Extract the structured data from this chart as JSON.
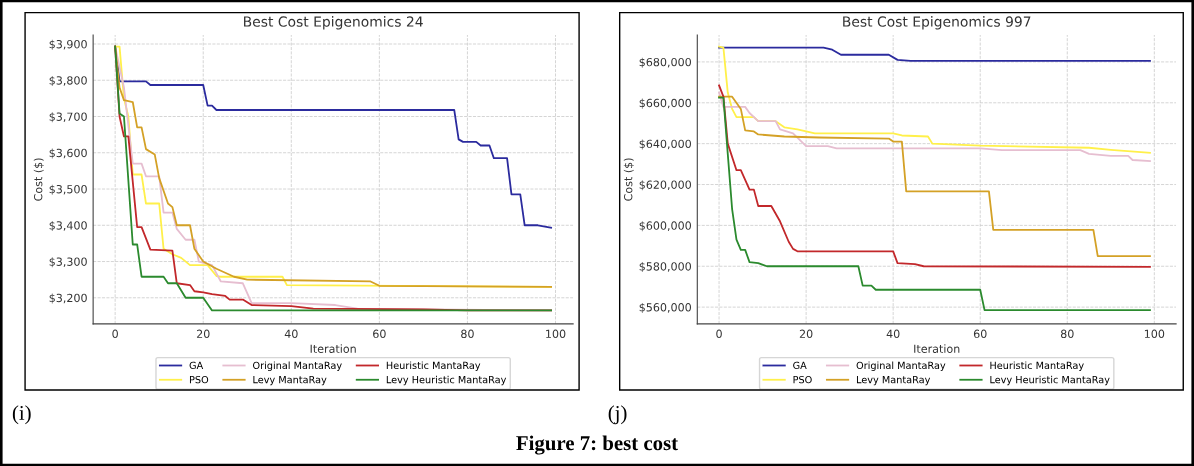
{
  "chart_data": [
    {
      "type": "line",
      "title": "Best Cost Epigenomics 24",
      "xlabel": "Iteration",
      "ylabel": "Cost ($)",
      "xlim": [
        -5,
        104
      ],
      "xticks": [
        0,
        20,
        40,
        60,
        80,
        100
      ],
      "ylim": [
        3128,
        3925
      ],
      "yticks": [
        {
          "value": 3200,
          "label": "$3,200"
        },
        {
          "value": 3300,
          "label": "$3,300"
        },
        {
          "value": 3400,
          "label": "$3,400"
        },
        {
          "value": 3500,
          "label": "$3,500"
        },
        {
          "value": 3600,
          "label": "$3,600"
        },
        {
          "value": 3700,
          "label": "$3,700"
        },
        {
          "value": 3800,
          "label": "$3,800"
        },
        {
          "value": 3900,
          "label": "$3,900"
        }
      ],
      "grid": true,
      "legend": "bottom",
      "annotations": [
        "(i)"
      ],
      "series": [
        {
          "name": "GA",
          "color": "#2b2b9e",
          "x": [
            0,
            1,
            7,
            8,
            20,
            21,
            22,
            23,
            77,
            78,
            79,
            82,
            83,
            85,
            86,
            89,
            90,
            92,
            93,
            96,
            99
          ],
          "values": [
            3893,
            3797,
            3797,
            3787,
            3787,
            3730,
            3730,
            3718,
            3718,
            3637,
            3630,
            3630,
            3620,
            3620,
            3585,
            3585,
            3485,
            3485,
            3400,
            3400,
            3393
          ]
        },
        {
          "name": "PSO",
          "color": "#fff04a",
          "x": [
            0,
            1,
            2,
            3,
            4,
            6,
            7,
            10,
            11,
            13,
            15,
            17,
            21,
            23,
            24,
            38,
            39,
            99
          ],
          "values": [
            3893,
            3893,
            3750,
            3700,
            3540,
            3540,
            3460,
            3460,
            3335,
            3320,
            3310,
            3290,
            3290,
            3260,
            3258,
            3258,
            3235,
            3230
          ]
        },
        {
          "name": "Original MantaRay",
          "color": "#e6bed0",
          "x": [
            0,
            2,
            4,
            6,
            7,
            10,
            11,
            13,
            14,
            16,
            18,
            19,
            22,
            24,
            29,
            31,
            40,
            50,
            55,
            99
          ],
          "values": [
            3893,
            3780,
            3570,
            3570,
            3535,
            3535,
            3435,
            3435,
            3390,
            3360,
            3360,
            3300,
            3290,
            3245,
            3240,
            3185,
            3185,
            3180,
            3170,
            3165
          ]
        },
        {
          "name": "Levy MantaRay",
          "color": "#d4a126",
          "x": [
            0,
            1,
            2,
            4,
            5,
            6,
            7,
            9,
            10,
            12,
            13,
            14,
            17,
            18,
            20,
            23,
            27,
            30,
            58,
            60,
            99
          ],
          "values": [
            3893,
            3780,
            3745,
            3740,
            3670,
            3670,
            3610,
            3595,
            3530,
            3460,
            3450,
            3400,
            3400,
            3335,
            3300,
            3280,
            3258,
            3250,
            3245,
            3233,
            3230
          ]
        },
        {
          "name": "Heuristic MantaRay",
          "color": "#c2282b",
          "x": [
            0,
            1,
            2,
            3,
            5,
            6,
            8,
            13,
            14,
            17,
            18,
            20,
            22,
            25,
            26,
            29,
            31,
            40,
            45,
            70,
            80,
            99
          ],
          "values": [
            3893,
            3700,
            3645,
            3645,
            3395,
            3395,
            3333,
            3330,
            3240,
            3235,
            3218,
            3215,
            3210,
            3205,
            3195,
            3195,
            3180,
            3177,
            3170,
            3168,
            3165,
            3165
          ]
        },
        {
          "name": "Levy Heuristic MantaRay",
          "color": "#2b8a2e",
          "x": [
            0,
            1,
            2,
            4,
            5,
            6,
            11,
            12,
            14,
            16,
            20,
            22,
            99
          ],
          "values": [
            3893,
            3708,
            3700,
            3347,
            3347,
            3258,
            3258,
            3240,
            3240,
            3200,
            3200,
            3165,
            3165
          ]
        }
      ]
    },
    {
      "type": "line",
      "title": "Best Cost Epigenomics 997",
      "xlabel": "Iteration",
      "ylabel": "Cost ($)",
      "xlim": [
        -5,
        105
      ],
      "xticks": [
        0,
        20,
        40,
        60,
        80,
        100
      ],
      "ylim": [
        551800,
        693200
      ],
      "yticks": [
        {
          "value": 560000,
          "label": "$560,000"
        },
        {
          "value": 580000,
          "label": "$580,000"
        },
        {
          "value": 600000,
          "label": "$600,000"
        },
        {
          "value": 620000,
          "label": "$620,000"
        },
        {
          "value": 640000,
          "label": "$640,000"
        },
        {
          "value": 660000,
          "label": "$660,000"
        },
        {
          "value": 680000,
          "label": "$680,000"
        }
      ],
      "grid": true,
      "legend": "bottom",
      "annotations": [
        "(j)",
        "Figure 7: best cost"
      ],
      "series": [
        {
          "name": "GA",
          "color": "#2b2b9e",
          "x": [
            0,
            24,
            26,
            28,
            39,
            41,
            44,
            99
          ],
          "values": [
            687000,
            687000,
            686000,
            683500,
            683500,
            681000,
            680500,
            680500
          ]
        },
        {
          "name": "PSO",
          "color": "#fff04a",
          "x": [
            0,
            1,
            2,
            3,
            4,
            8,
            9,
            13,
            15,
            18,
            22,
            40,
            42,
            48,
            49,
            60,
            85,
            90,
            99
          ],
          "values": [
            687500,
            687000,
            665000,
            657000,
            653000,
            653000,
            651000,
            651000,
            648000,
            647000,
            645000,
            645000,
            644000,
            643500,
            640000,
            639000,
            638000,
            637000,
            635500
          ]
        },
        {
          "name": "Original MantaRay",
          "color": "#e6bed0",
          "x": [
            0,
            1,
            6,
            7,
            9,
            13,
            14,
            17,
            20,
            25,
            27,
            60,
            65,
            83,
            85,
            90,
            94,
            95,
            99
          ],
          "values": [
            665000,
            658000,
            658000,
            655000,
            651000,
            651000,
            647000,
            645000,
            638800,
            638800,
            637700,
            637700,
            636800,
            636800,
            635000,
            634000,
            634000,
            632000,
            631500
          ]
        },
        {
          "name": "Levy MantaRay",
          "color": "#d4a126",
          "x": [
            0,
            3,
            5,
            6,
            8,
            9,
            15,
            23,
            39,
            40,
            42,
            43,
            62,
            63,
            86,
            87,
            99
          ],
          "values": [
            663000,
            663000,
            657000,
            646500,
            646000,
            644500,
            643500,
            643000,
            642500,
            641000,
            641000,
            616600,
            616600,
            597800,
            597800,
            585000,
            585000
          ]
        },
        {
          "name": "Heuristic MantaRay",
          "color": "#c2282b",
          "x": [
            0,
            1,
            2,
            4,
            5,
            7,
            8,
            9,
            12,
            14,
            16,
            17,
            18,
            40,
            41,
            45,
            47,
            99
          ],
          "values": [
            668500,
            663000,
            640000,
            627000,
            627000,
            617500,
            617500,
            609500,
            609500,
            602000,
            592000,
            588500,
            587300,
            587300,
            581500,
            581000,
            580000,
            579700
          ]
        },
        {
          "name": "Levy Heuristic MantaRay",
          "color": "#2b8a2e",
          "x": [
            0,
            1,
            2,
            3,
            4,
            5,
            6,
            7,
            9,
            11,
            32,
            33,
            35,
            36,
            60,
            61,
            99
          ],
          "values": [
            662500,
            662500,
            635000,
            608000,
            593000,
            588000,
            588000,
            582000,
            581500,
            580000,
            580000,
            570500,
            570500,
            568500,
            568500,
            558500,
            558500
          ]
        }
      ]
    }
  ]
}
